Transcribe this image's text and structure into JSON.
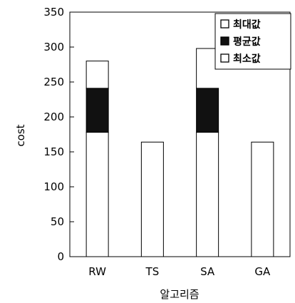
{
  "chart_data": {
    "type": "bar",
    "stacked": true,
    "categories": [
      "RW",
      "TS",
      "SA",
      "GA"
    ],
    "series": [
      {
        "name": "최소값",
        "color": "#ffffff",
        "values": [
          178,
          164,
          178,
          164
        ]
      },
      {
        "name": "평균값",
        "color": "#111111",
        "values": [
          63,
          0,
          63,
          0
        ]
      },
      {
        "name": "최대값",
        "color": "#ffffff",
        "values": [
          39,
          0,
          0,
          0
        ]
      }
    ],
    "ylim": [
      0,
      350
    ],
    "yticks": [
      0,
      50,
      100,
      150,
      200,
      250,
      300,
      350
    ],
    "xlabel": "알고리즘",
    "ylabel": "cost",
    "legend_position": "top-right",
    "grid": false
  }
}
